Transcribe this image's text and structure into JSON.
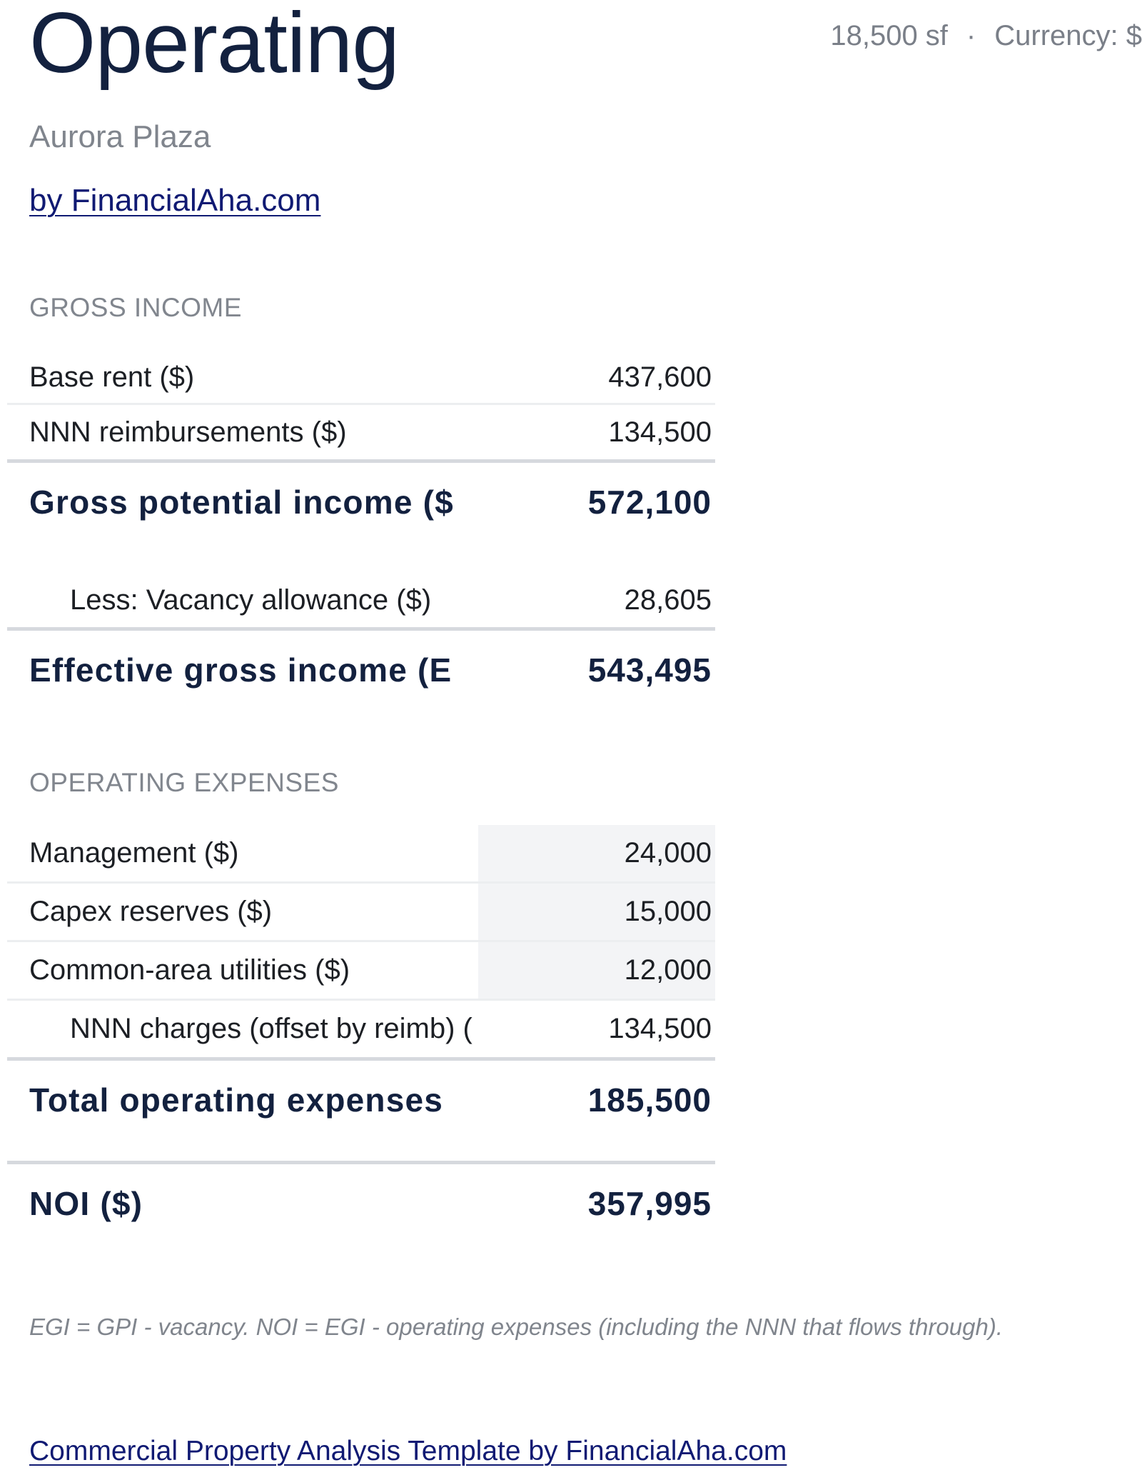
{
  "header": {
    "title": "Operating",
    "property_name": "Aurora Plaza",
    "byline": "by FinancialAha.com",
    "area": "18,500 sf",
    "separator": "·",
    "currency": "Currency: $"
  },
  "gross_income": {
    "section_label": "GROSS INCOME",
    "base_rent": {
      "label": "Base rent ($)",
      "value": "437,600"
    },
    "nnn_reimbursements": {
      "label": "NNN reimbursements ($)",
      "value": "134,500"
    },
    "gross_potential_income": {
      "label": "Gross potential income ($",
      "value": "572,100"
    },
    "vacancy_allowance": {
      "label": "Less: Vacancy allowance ($)",
      "value": "28,605"
    },
    "effective_gross_income": {
      "label": "Effective gross income (E",
      "value": "543,495"
    }
  },
  "operating_expenses": {
    "section_label": "OPERATING EXPENSES",
    "management": {
      "label": "Management ($)",
      "value": "24,000"
    },
    "capex_reserves": {
      "label": "Capex reserves ($)",
      "value": "15,000"
    },
    "common_area_utilities": {
      "label": "Common-area utilities ($)",
      "value": "12,000"
    },
    "nnn_charges": {
      "label": "NNN charges (offset by reimb) (",
      "value": "134,500"
    },
    "total": {
      "label": "Total operating expenses",
      "value": "185,500"
    }
  },
  "noi": {
    "label": "NOI ($)",
    "value": "357,995"
  },
  "note": "EGI = GPI - vacancy. NOI = EGI - operating expenses (including the NNN that flows through).",
  "footer_link": "Commercial Property Analysis Template by FinancialAha.com"
}
